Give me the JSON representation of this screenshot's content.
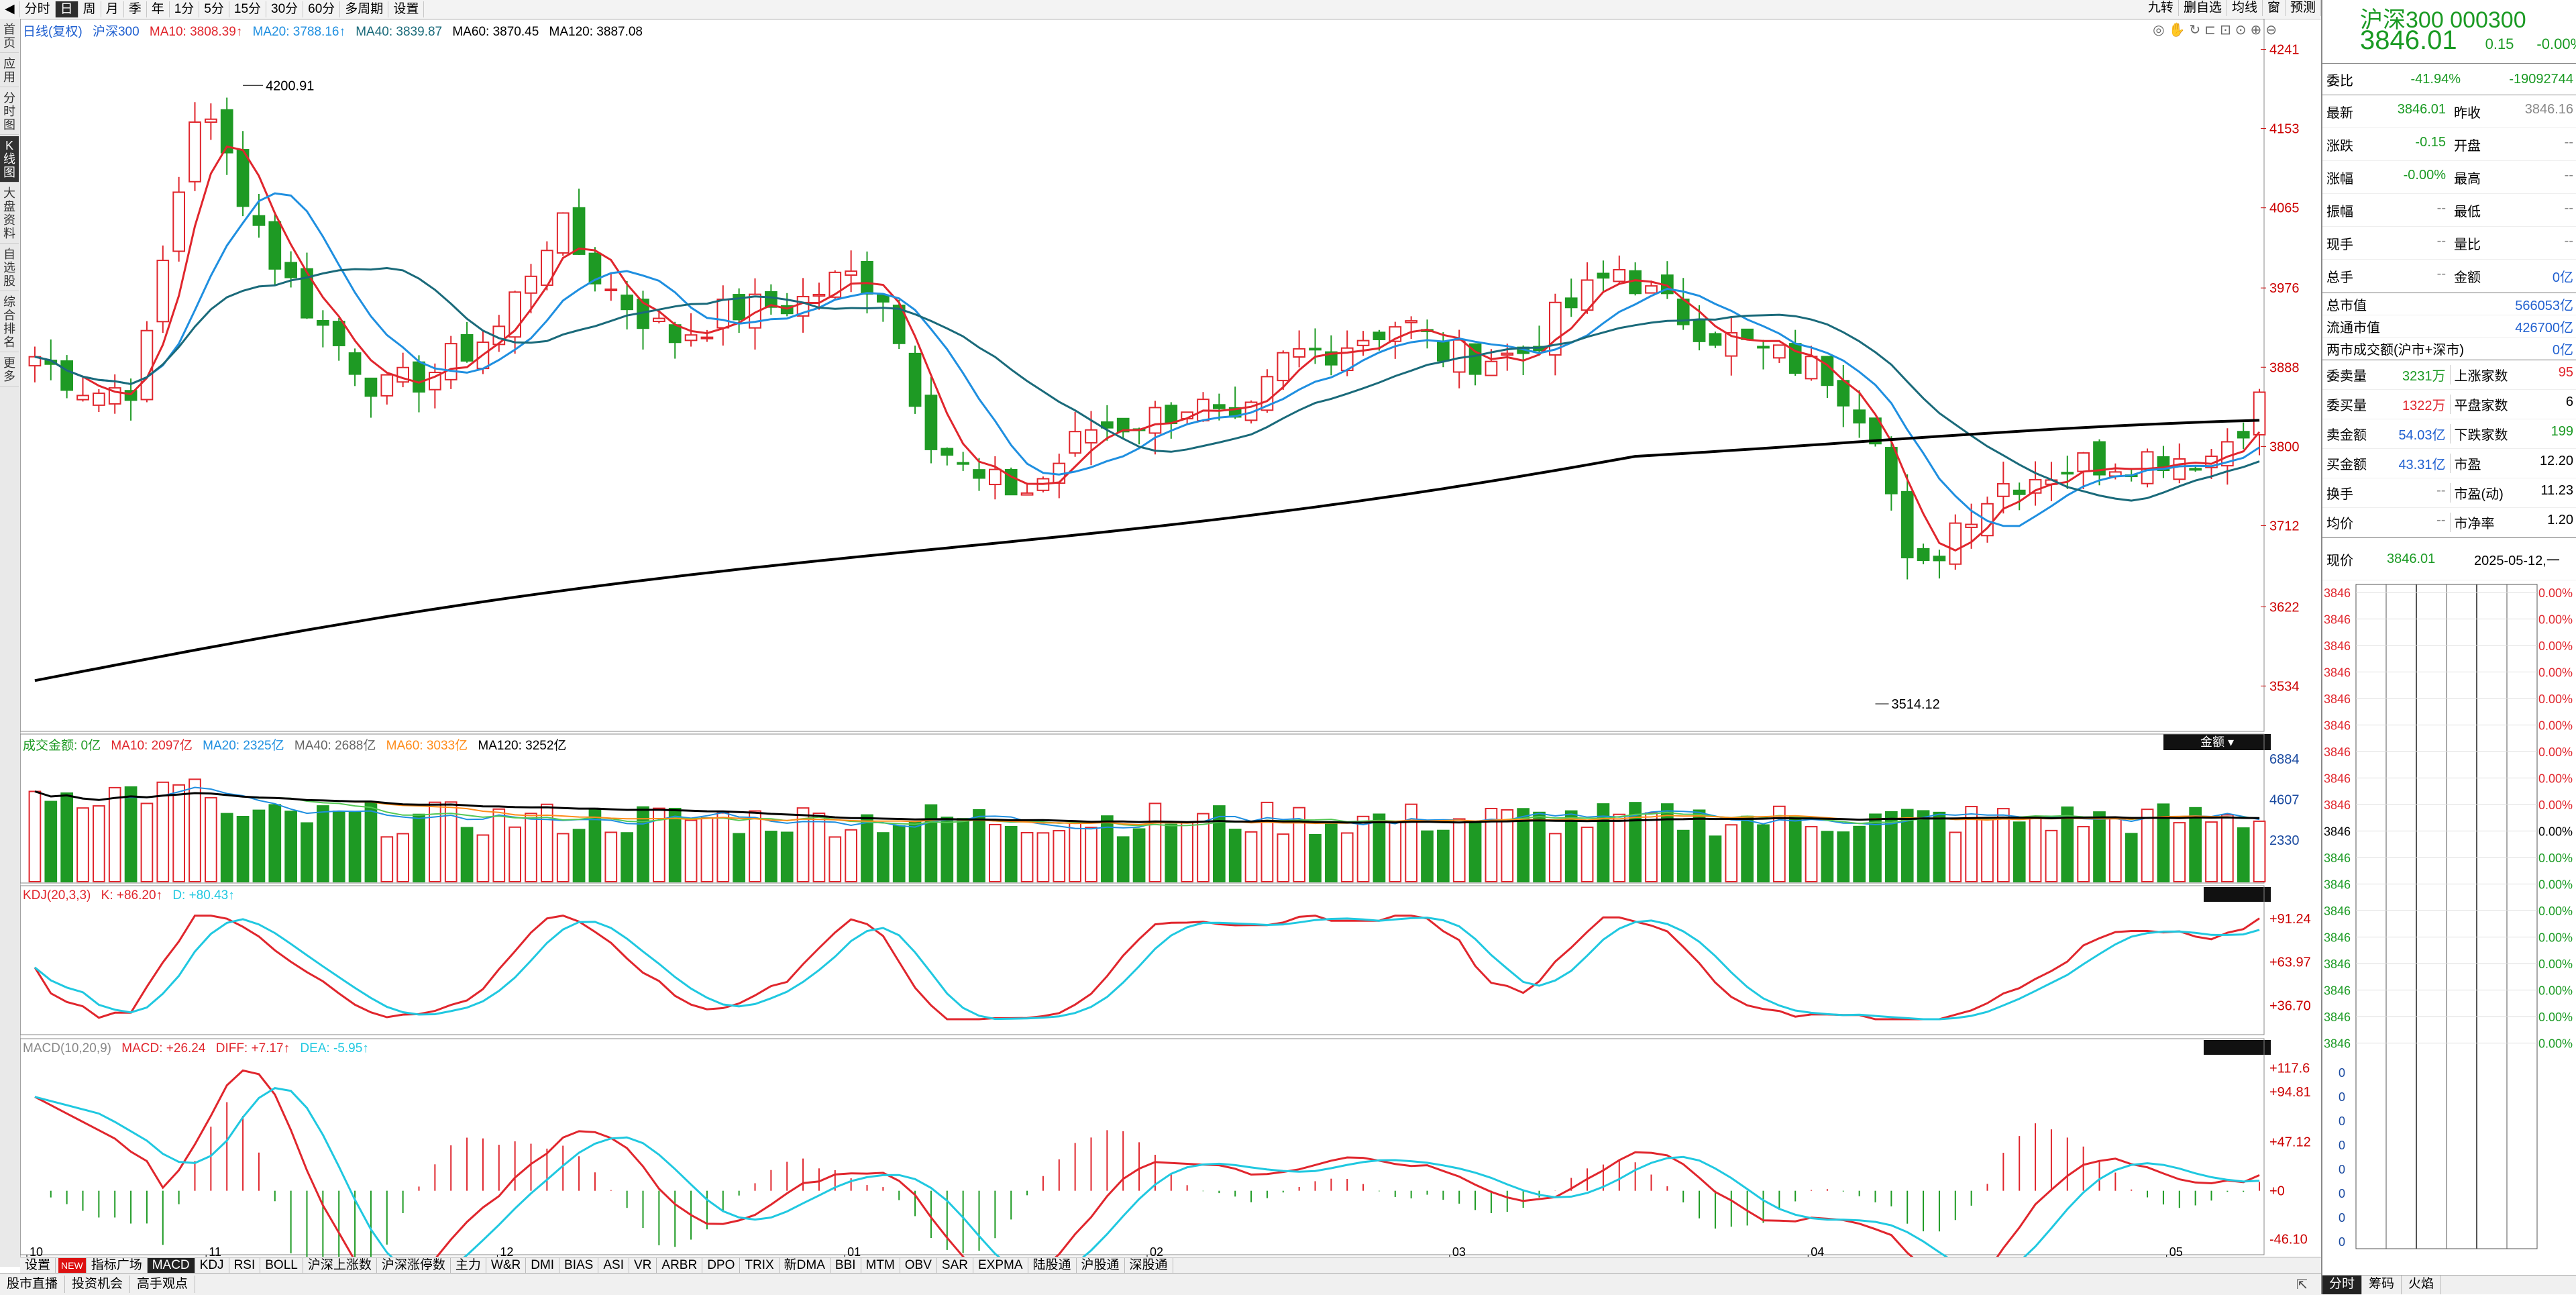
{
  "toolbar": {
    "left_tabs": [
      "分时",
      "日",
      "周",
      "月",
      "季",
      "年",
      "1分",
      "5分",
      "15分",
      "30分",
      "60分",
      "多周期",
      "设置"
    ],
    "active_tab": "日",
    "right_tabs": [
      "九转",
      "删自选",
      "均线",
      "窗",
      "预测"
    ]
  },
  "leftnav": {
    "items": [
      "首页",
      "应用",
      "分时图",
      "K线图",
      "大盘资料",
      "自选股",
      "综合排名",
      "更多"
    ],
    "active": "K线图"
  },
  "kline": {
    "legend": {
      "title": "日线(复权)",
      "name": "沪深300",
      "ma10": "MA10: 3808.39↑",
      "ma20": "MA20: 3788.16↑",
      "ma40": "MA40: 3839.87",
      "ma60": "MA60: 3870.45",
      "ma120": "MA120: 3887.08"
    },
    "yticks": [
      "4241",
      "4153",
      "4065",
      "3976",
      "3888",
      "3800",
      "3712",
      "3622",
      "3534"
    ],
    "high_label": "4200.91",
    "low_label": "3514.12"
  },
  "volume": {
    "legend": {
      "title": "成交金额: 0亿",
      "ma10": "MA10: 2097亿",
      "ma20": "MA20: 2325亿",
      "ma40": "MA40: 2688亿",
      "ma60": "MA60: 3033亿",
      "ma120": "MA120: 3252亿"
    },
    "yticks": [
      "6884",
      "4607",
      "2330"
    ],
    "dropdown": "金额"
  },
  "kdj": {
    "legend": {
      "title": "KDJ(20,3,3)",
      "k": "K: +86.20↑",
      "d": "D: +80.43↑"
    },
    "yticks": [
      "+91.24",
      "+63.97",
      "+36.70"
    ]
  },
  "macd": {
    "legend": {
      "title": "MACD(10,20,9)",
      "macd": "MACD: +26.24",
      "diff": "DIFF: +7.17↑",
      "dea": "DEA: -5.95↑"
    },
    "yticks": [
      "+117.6",
      "+94.81",
      "+47.12",
      "+0",
      "-46.10"
    ]
  },
  "months": [
    "10",
    "11",
    "12",
    "01",
    "02",
    "03",
    "04",
    "05"
  ],
  "indicator_bar": {
    "items": [
      "设置",
      "NEW",
      "指标广场",
      "MACD",
      "KDJ",
      "RSI",
      "BOLL",
      "沪深上涨数",
      "沪深涨停数",
      "主力",
      "W&R",
      "DMI",
      "BIAS",
      "ASI",
      "VR",
      "ARBR",
      "DPO",
      "TRIX",
      "新DMA",
      "BBI",
      "MTM",
      "OBV",
      "SAR",
      "EXPMA",
      "陆股通",
      "沪股通",
      "深股通"
    ],
    "active": "MACD"
  },
  "bottom_bar": {
    "items": [
      "股市直播",
      "投资机会",
      "高手观点"
    ]
  },
  "panel": {
    "title": "沪深300 000300",
    "price": "3846.01",
    "change": "0.15",
    "change_pct": "-0.00%",
    "weibi_label": "委比",
    "weibi_pct": "-41.94%",
    "weibi_val": "-19092744",
    "quote": [
      [
        "最新",
        "3846.01",
        "昨收",
        "3846.16"
      ],
      [
        "涨跌",
        "-0.15",
        "开盘",
        "--"
      ],
      [
        "涨幅",
        "-0.00%",
        "最高",
        "--"
      ],
      [
        "振幅",
        "--",
        "最低",
        "--"
      ],
      [
        "现手",
        "--",
        "量比",
        "--"
      ],
      [
        "总手",
        "--",
        "金额",
        "0亿"
      ]
    ],
    "market": [
      [
        "总市值",
        "566053亿"
      ],
      [
        "流通市值",
        "426700亿"
      ],
      [
        "两市成交额(沪市+深市)",
        "0亿"
      ]
    ],
    "breadth": [
      [
        "委卖量",
        "3231万",
        "上涨家数",
        "95"
      ],
      [
        "委买量",
        "1322万",
        "平盘家数",
        "6"
      ],
      [
        "卖金额",
        "54.03亿",
        "下跌家数",
        "199"
      ],
      [
        "买金额",
        "43.31亿",
        "市盈",
        "12.20"
      ],
      [
        "换手",
        "--",
        "市盈(动)",
        "11.23"
      ],
      [
        "均价",
        "--",
        "市净率",
        "1.20"
      ]
    ],
    "now_label": "现价",
    "now_price": "3846.01",
    "now_date": "2025-05-12,一",
    "grid_price": "3846",
    "grid_pct": "0.00%",
    "grid_zero": "0",
    "tabs": [
      "分时",
      "筹码",
      "火焰"
    ]
  },
  "colors": {
    "up": "#e0262d",
    "down": "#1e9a24",
    "ma10": "#e0262d",
    "ma20": "#1f8fe0",
    "ma40": "#1a6a7a",
    "ma120": "#000000",
    "vol_ma60": "#ff8c1a",
    "kdj_k": "#e0262d",
    "kdj_d": "#20c8e0"
  }
}
